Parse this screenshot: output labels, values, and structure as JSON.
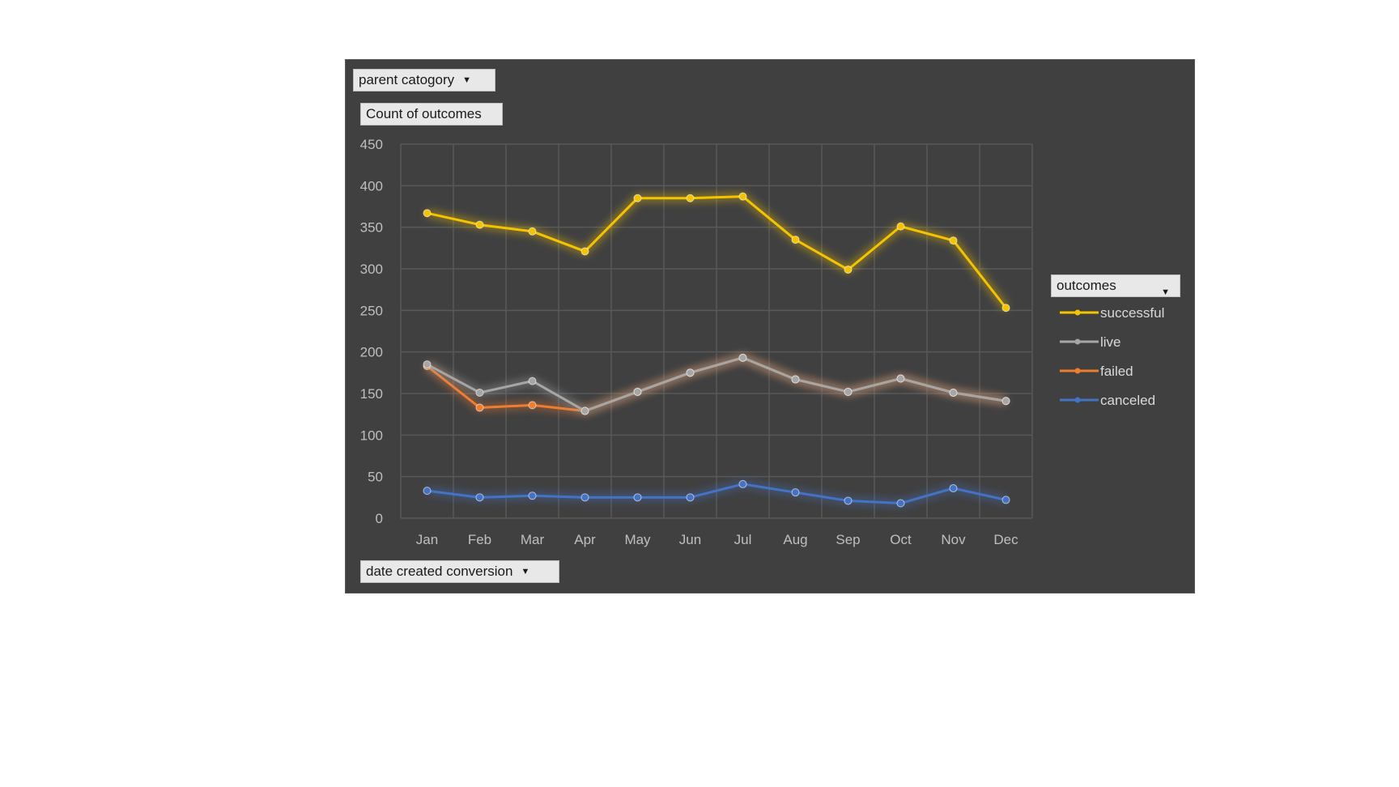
{
  "filters": {
    "parent_category_label": "parent catogory",
    "values_label": "Count of outcomes",
    "axis_field_label": "date created conversion",
    "legend_field_label": "outcomes"
  },
  "colors": {
    "panel_bg": "#404040",
    "grid": "#595959",
    "successful": "#f5c400",
    "live": "#a6a6a6",
    "failed": "#ed7d31",
    "canceled": "#4472c4"
  },
  "chart_data": {
    "type": "line",
    "categories": [
      "Jan",
      "Feb",
      "Mar",
      "Apr",
      "May",
      "Jun",
      "Jul",
      "Aug",
      "Sep",
      "Oct",
      "Nov",
      "Dec"
    ],
    "series": [
      {
        "name": "successful",
        "values": [
          367,
          353,
          345,
          321,
          385,
          385,
          387,
          335,
          299,
          351,
          334,
          253
        ]
      },
      {
        "name": "live",
        "values": [
          185,
          151,
          165,
          129,
          152,
          175,
          193,
          167,
          152,
          168,
          151,
          141
        ]
      },
      {
        "name": "failed",
        "values": [
          183,
          133,
          136,
          129,
          152,
          175,
          193,
          167,
          152,
          168,
          151,
          141
        ]
      },
      {
        "name": "canceled",
        "values": [
          33,
          25,
          27,
          25,
          25,
          25,
          41,
          31,
          21,
          18,
          36,
          22
        ]
      }
    ],
    "ylim": [
      0,
      450
    ],
    "yticks": [
      0,
      50,
      100,
      150,
      200,
      250,
      300,
      350,
      400,
      450
    ],
    "grid": true,
    "legend_position": "right"
  }
}
